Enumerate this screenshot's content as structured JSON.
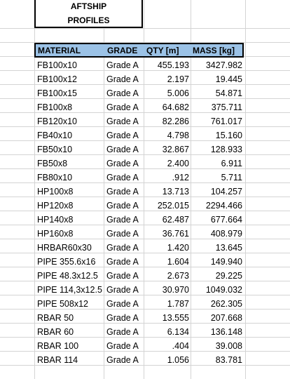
{
  "title": {
    "line1": "AFTSHIP",
    "line2": "PROFILES"
  },
  "table": {
    "headers": {
      "material": "MATERIAL",
      "grade": "GRADE",
      "qty": "QTY [m]",
      "mass": "MASS [kg]"
    },
    "rows": [
      {
        "material": "FB100x10",
        "grade": "Grade A",
        "qty": "455.193",
        "mass": "3427.982"
      },
      {
        "material": "FB100x12",
        "grade": "Grade A",
        "qty": "2.197",
        "mass": "19.445"
      },
      {
        "material": "FB100x15",
        "grade": "Grade A",
        "qty": "5.006",
        "mass": "54.871"
      },
      {
        "material": "FB100x8",
        "grade": "Grade A",
        "qty": "64.682",
        "mass": "375.711"
      },
      {
        "material": "FB120x10",
        "grade": "Grade A",
        "qty": "82.286",
        "mass": "761.017"
      },
      {
        "material": "FB40x10",
        "grade": "Grade A",
        "qty": "4.798",
        "mass": "15.160"
      },
      {
        "material": "FB50x10",
        "grade": "Grade A",
        "qty": "32.867",
        "mass": "128.933"
      },
      {
        "material": "FB50x8",
        "grade": "Grade A",
        "qty": "2.400",
        "mass": "6.911"
      },
      {
        "material": "FB80x10",
        "grade": "Grade A",
        "qty": ".912",
        "mass": "5.711"
      },
      {
        "material": "HP100x8",
        "grade": "Grade A",
        "qty": "13.713",
        "mass": "104.257"
      },
      {
        "material": "HP120x8",
        "grade": "Grade A",
        "qty": "252.015",
        "mass": "2294.466"
      },
      {
        "material": "HP140x8",
        "grade": "Grade A",
        "qty": "62.487",
        "mass": "677.664"
      },
      {
        "material": "HP160x8",
        "grade": "Grade A",
        "qty": "36.761",
        "mass": "408.979"
      },
      {
        "material": "HRBAR60x30",
        "grade": "Grade A",
        "qty": "1.420",
        "mass": "13.645"
      },
      {
        "material": "PIPE 355.6x16",
        "grade": "Grade A",
        "qty": "1.604",
        "mass": "149.940"
      },
      {
        "material": "PIPE 48.3x12.5",
        "grade": "Grade A",
        "qty": "2.673",
        "mass": "29.225"
      },
      {
        "material": "PIPE 114,3x12.5",
        "grade": "Grade A",
        "qty": "30.970",
        "mass": "1049.032"
      },
      {
        "material": "PIPE 508x12",
        "grade": "Grade A",
        "qty": "1.787",
        "mass": "262.305"
      },
      {
        "material": "RBAR 50",
        "grade": "Grade A",
        "qty": "13.555",
        "mass": "207.668"
      },
      {
        "material": "RBAR 60",
        "grade": "Grade A",
        "qty": "6.134",
        "mass": "136.148"
      },
      {
        "material": "RBAR 100",
        "grade": "Grade A",
        "qty": ".404",
        "mass": "39.008"
      },
      {
        "material": "RBAR 114",
        "grade": "Grade A",
        "qty": "1.056",
        "mass": "83.781"
      }
    ]
  },
  "colors": {
    "header_fill": "#9bc2e6",
    "gridline": "#d4d4d4"
  }
}
